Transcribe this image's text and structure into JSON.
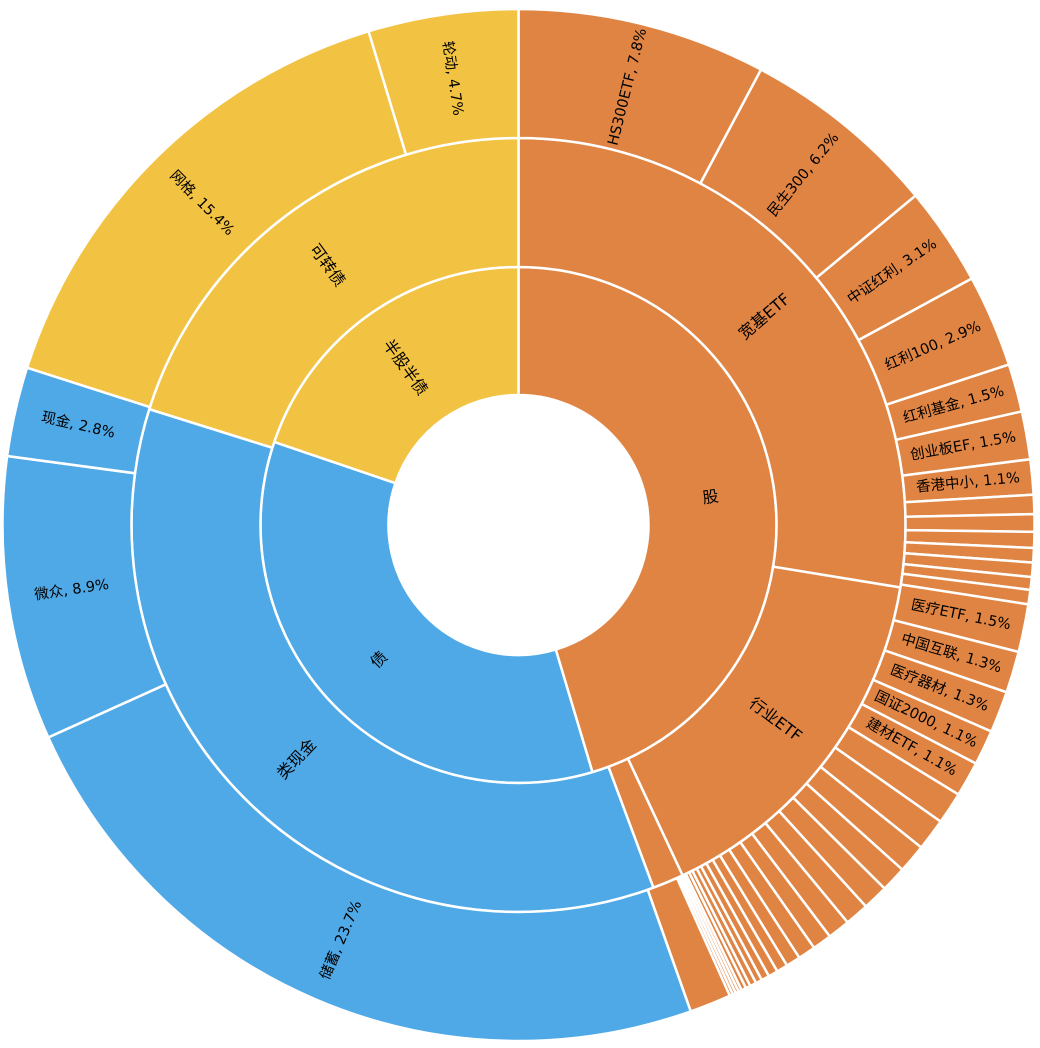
{
  "chart_data": {
    "type": "sunburst",
    "title": "",
    "colors": {
      "股": "#E08443",
      "债": "#4FA9E6",
      "半股半债": "#F2C242"
    },
    "rings": [
      {
        "level": 1,
        "items": [
          {
            "label": "股",
            "value": 46.1
          },
          {
            "label": "债",
            "value": 35.4
          },
          {
            "label": "半股半债",
            "value": 20.1
          }
        ]
      },
      {
        "level": 2,
        "items": [
          {
            "label": "宽基ETF",
            "parent": "股",
            "value": 27.5
          },
          {
            "label": "行业ETF",
            "parent": "股",
            "value": 15.4
          },
          {
            "label": "",
            "parent": "股",
            "value": 1.3
          },
          {
            "label": "类现金",
            "parent": "债",
            "value": 35.4
          },
          {
            "label": "可转债",
            "parent": "半股半债",
            "value": 20.1
          }
        ]
      },
      {
        "level": 3,
        "items": [
          {
            "label": "HS300ETF, 7.8%",
            "parent": "宽基ETF",
            "value": 7.8
          },
          {
            "label": "民生300, 6.2%",
            "parent": "宽基ETF",
            "value": 6.2
          },
          {
            "label": "中证红利, 3.1%",
            "parent": "宽基ETF",
            "value": 3.1
          },
          {
            "label": "红利100, 2.9%",
            "parent": "宽基ETF",
            "value": 2.9
          },
          {
            "label": "红利基金, 1.5%",
            "parent": "宽基ETF",
            "value": 1.5
          },
          {
            "label": "创业板EF, 1.5%",
            "parent": "宽基ETF",
            "value": 1.5
          },
          {
            "label": "香港中小, 1.1%",
            "parent": "宽基ETF",
            "value": 1.1
          },
          {
            "label": "",
            "parent": "宽基ETF",
            "value": 0.6
          },
          {
            "label": "",
            "parent": "宽基ETF",
            "value": 0.55
          },
          {
            "label": "",
            "parent": "宽基ETF",
            "value": 0.5
          },
          {
            "label": "",
            "parent": "宽基ETF",
            "value": 0.45
          },
          {
            "label": "",
            "parent": "宽基ETF",
            "value": 0.45
          },
          {
            "label": "",
            "parent": "宽基ETF",
            "value": 0.4
          },
          {
            "label": "",
            "parent": "宽基ETF",
            "value": 0.45
          },
          {
            "label": "医疗ETF, 1.5%",
            "parent": "行业ETF",
            "value": 1.5
          },
          {
            "label": "中国互联, 1.3%",
            "parent": "行业ETF",
            "value": 1.3
          },
          {
            "label": "医疗器材, 1.3%",
            "parent": "行业ETF",
            "value": 1.3
          },
          {
            "label": "国证2000, 1.1%",
            "parent": "行业ETF",
            "value": 1.1
          },
          {
            "label": "建材ETF, 1.1%",
            "parent": "行业ETF",
            "value": 1.1
          },
          {
            "label": "",
            "parent": "行业ETF",
            "value": 1.0
          },
          {
            "label": "",
            "parent": "行业ETF",
            "value": 1.0
          },
          {
            "label": "",
            "parent": "行业ETF",
            "value": 0.9
          },
          {
            "label": "",
            "parent": "行业ETF",
            "value": 0.8
          },
          {
            "label": "",
            "parent": "行业ETF",
            "value": 0.8
          },
          {
            "label": "",
            "parent": "行业ETF",
            "value": 0.75
          },
          {
            "label": "",
            "parent": "行业ETF",
            "value": 0.7
          },
          {
            "label": "",
            "parent": "行业ETF",
            "value": 0.6
          },
          {
            "label": "",
            "parent": "行业ETF",
            "value": 0.55
          },
          {
            "label": "",
            "parent": "行业ETF",
            "value": 0.45
          },
          {
            "label": "",
            "parent": "行业ETF",
            "value": 0.35
          },
          {
            "label": "",
            "parent": "行业ETF",
            "value": 0.3
          },
          {
            "label": "",
            "parent": "行业ETF",
            "value": 0.25
          },
          {
            "label": "",
            "parent": "行业ETF",
            "value": 0.2
          },
          {
            "label": "",
            "parent": "行业ETF",
            "value": 0.2
          },
          {
            "label": "",
            "parent": "行业ETF",
            "value": 0.15
          },
          {
            "label": "",
            "parent": "行业ETF",
            "value": 0.15
          },
          {
            "label": "",
            "parent": "行业ETF",
            "value": 0.1
          },
          {
            "label": "",
            "parent": "行业ETF",
            "value": 0.1
          },
          {
            "label": "",
            "parent": "行业ETF",
            "value": 0.1
          },
          {
            "label": "",
            "parent": "行业ETF",
            "value": 0.1
          },
          {
            "label": "",
            "parent": "",
            "value": 1.3
          },
          {
            "label": "储蓄, 23.7%",
            "parent": "类现金",
            "value": 23.7
          },
          {
            "label": "微众, 8.9%",
            "parent": "类现金",
            "value": 8.9
          },
          {
            "label": "现金, 2.8%",
            "parent": "类现金",
            "value": 2.8
          },
          {
            "label": "网格, 15.4%",
            "parent": "可转债",
            "value": 15.4
          },
          {
            "label": "轮动, 4.7%",
            "parent": "可转债",
            "value": 4.7
          }
        ]
      }
    ]
  }
}
